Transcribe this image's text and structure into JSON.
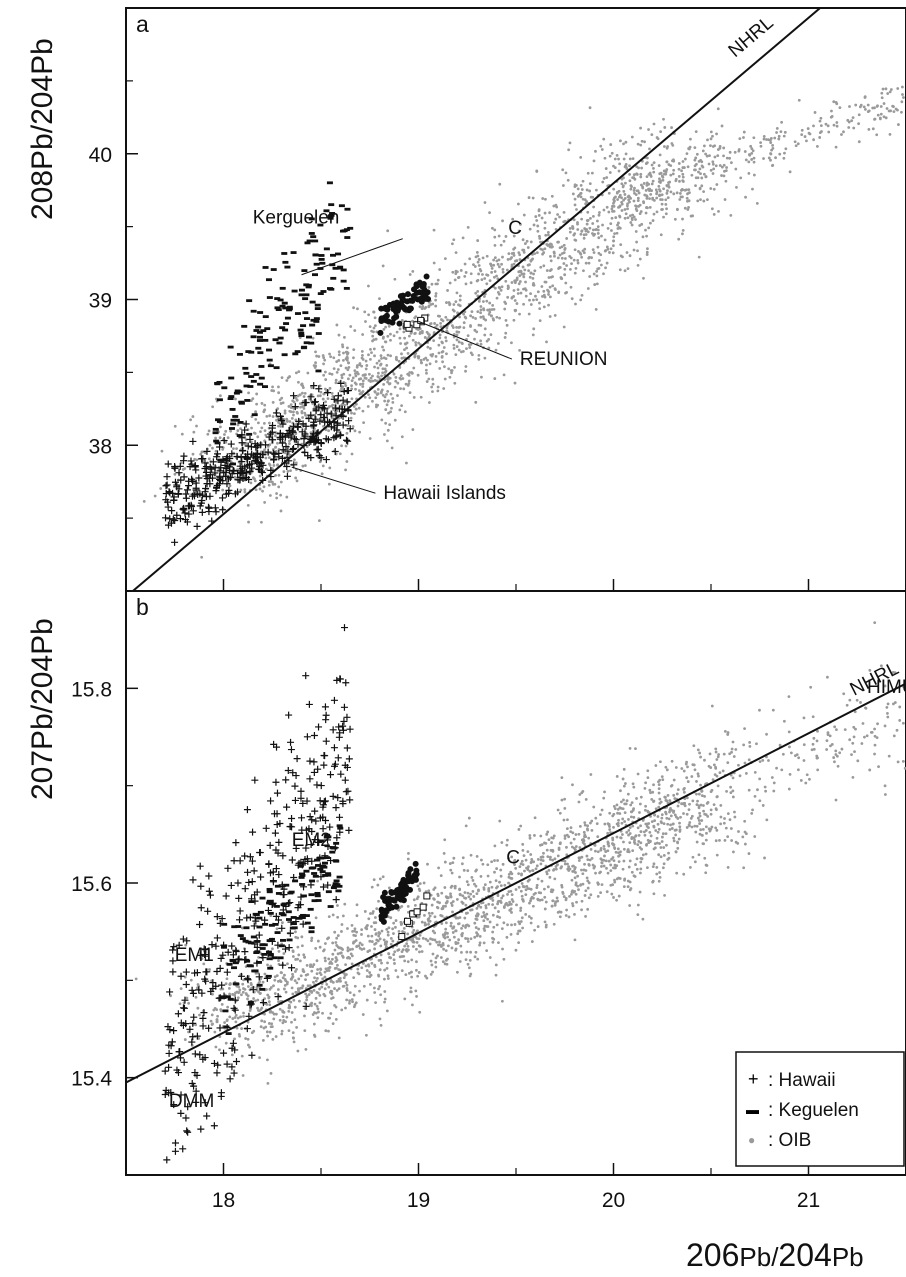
{
  "x_axis_title": {
    "pre": "206",
    "mid": "Pb/",
    "sup": "204",
    "post": "Pb"
  },
  "chart_data": [
    {
      "panel": "a",
      "type": "scatter",
      "ylabel": {
        "pre": "208",
        "mid": "Pb/",
        "sup": "204",
        "post": "Pb"
      },
      "xlim": [
        17.5,
        21.5
      ],
      "ylim": [
        37.0,
        41.0
      ],
      "x_ticks": [
        18,
        19,
        20,
        21
      ],
      "y_ticks": [
        38,
        39,
        40
      ],
      "reference_lines": [
        {
          "label": "NHRL",
          "points": [
            [
              17.5,
              36.96
            ],
            [
              21.5,
              41.5
            ]
          ]
        }
      ],
      "annotations": [
        {
          "text": "Kerguelen",
          "label_at": [
            18.15,
            39.52
          ],
          "points_to": [
            18.4,
            39.17
          ]
        },
        {
          "text": "REUNION",
          "label_at": [
            19.52,
            38.55
          ],
          "points_to": [
            19.0,
            38.85
          ]
        },
        {
          "text": "Hawaii Islands",
          "label_at": [
            18.82,
            37.63
          ],
          "points_to": [
            18.35,
            37.85
          ]
        },
        {
          "text": "C",
          "label_at": [
            19.46,
            39.45
          ]
        }
      ],
      "series": [
        {
          "name": "OIB",
          "marker": "dot",
          "color": "#9a9a9a",
          "count": 2200,
          "trend_from": [
            18.0,
            37.8
          ],
          "trend_to": [
            20.4,
            40.0
          ]
        },
        {
          "name": "Hawaii",
          "marker": "plus",
          "color": "#111111",
          "count": 380,
          "x_range": [
            17.7,
            18.65
          ],
          "y_range": [
            37.6,
            38.25
          ]
        },
        {
          "name": "Keguelen",
          "marker": "dash",
          "color": "#111111",
          "count": 170,
          "x_range": [
            17.95,
            18.65
          ],
          "y_range": [
            38.2,
            39.5
          ]
        },
        {
          "name": "REUNION",
          "marker": "filled-circle",
          "color": "#111111",
          "count": 70,
          "x_range": [
            18.8,
            19.05
          ],
          "y_range": [
            38.85,
            39.08
          ]
        },
        {
          "name": "",
          "marker": "open-square",
          "color": "#111111",
          "count": 8,
          "x_range": [
            18.9,
            19.1
          ],
          "y_range": [
            38.8,
            38.9
          ]
        }
      ]
    },
    {
      "panel": "b",
      "type": "scatter",
      "ylabel": {
        "pre": "207",
        "mid": "Pb/",
        "sup": "204",
        "post": "Pb"
      },
      "xlim": [
        17.5,
        21.5
      ],
      "ylim": [
        15.3,
        15.9
      ],
      "x_ticks": [
        18,
        19,
        20,
        21
      ],
      "y_ticks": [
        15.4,
        15.6,
        15.8
      ],
      "reference_lines": [
        {
          "label": "NHRL",
          "points": [
            [
              17.5,
              15.395
            ],
            [
              21.5,
              15.805
            ]
          ]
        }
      ],
      "annotations": [
        {
          "text": "HIMU",
          "label_at": [
            21.3,
            15.795
          ]
        },
        {
          "text": "EM2",
          "label_at": [
            18.35,
            15.638
          ]
        },
        {
          "text": "C",
          "label_at": [
            19.45,
            15.62
          ]
        },
        {
          "text": "EM1",
          "label_at": [
            17.75,
            15.52
          ]
        },
        {
          "text": "DMM",
          "label_at": [
            17.72,
            15.37
          ]
        }
      ],
      "series": [
        {
          "name": "OIB",
          "marker": "dot",
          "color": "#9a9a9a",
          "count": 2200,
          "trend_from": [
            18.0,
            15.46
          ],
          "trend_to": [
            20.5,
            15.68
          ]
        },
        {
          "name": "Hawaii",
          "marker": "plus",
          "color": "#111111",
          "count": 380,
          "x_range": [
            17.7,
            18.65
          ],
          "y_range": [
            15.4,
            15.75
          ]
        },
        {
          "name": "Keguelen",
          "marker": "dash",
          "color": "#111111",
          "count": 150,
          "x_range": [
            18.0,
            18.6
          ],
          "y_range": [
            15.5,
            15.63
          ]
        },
        {
          "name": "REUNION",
          "marker": "filled-circle",
          "color": "#111111",
          "count": 70,
          "x_range": [
            18.8,
            19.0
          ],
          "y_range": [
            15.57,
            15.61
          ]
        },
        {
          "name": "",
          "marker": "open-square",
          "color": "#111111",
          "count": 8,
          "x_range": [
            18.9,
            19.05
          ],
          "y_range": [
            15.55,
            15.58
          ]
        }
      ],
      "legend": {
        "position": "bottom-right",
        "entries": [
          {
            "symbol": "+",
            "label": ": Hawaii"
          },
          {
            "symbol": "▬",
            "label": ": Keguelen"
          },
          {
            "symbol": "●",
            "label": ": OIB"
          }
        ]
      }
    }
  ]
}
